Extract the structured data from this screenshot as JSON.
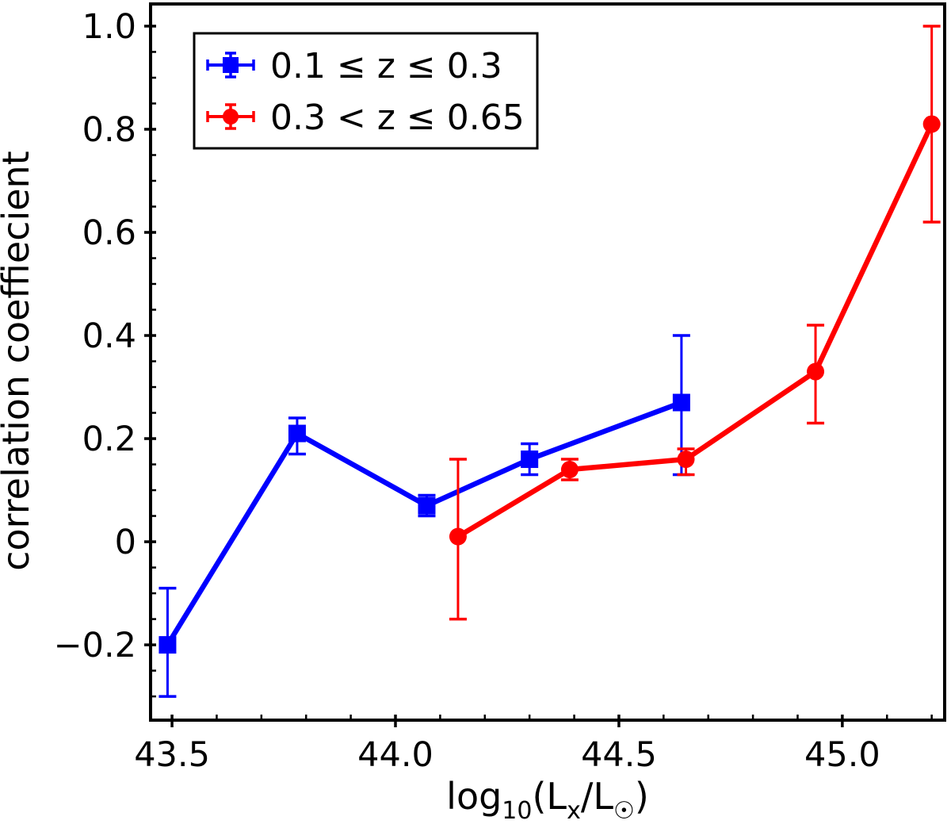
{
  "chart_data": {
    "type": "line",
    "title": "",
    "xlabel": "log₁₀(Lₓ/L☉)",
    "xlabel_parts": [
      {
        "text": "log",
        "sub": false
      },
      {
        "text": "10",
        "sub": true
      },
      {
        "text": "(L",
        "sub": false
      },
      {
        "text": "x",
        "sub": true
      },
      {
        "text": "/L",
        "sub": false
      },
      {
        "text": "☉",
        "sub": true
      },
      {
        "text": ")",
        "sub": false
      }
    ],
    "ylabel": "correlation coeffiecient",
    "xlim": [
      43.452,
      45.229
    ],
    "ylim": [
      -0.346,
      1.043
    ],
    "x_major_ticks": [
      43.5,
      44.0,
      44.5,
      45.0
    ],
    "x_tick_labels": [
      "43.5",
      "44.0",
      "44.5",
      "45.0"
    ],
    "x_minor_step": 0.1,
    "y_major_ticks": [
      -0.2,
      0,
      0.2,
      0.4,
      0.6,
      0.8,
      1.0
    ],
    "y_tick_labels": [
      "−0.2",
      "0",
      "0.2",
      "0.4",
      "0.6",
      "0.8",
      "1.0"
    ],
    "y_minor_step": 0.05,
    "grid": false,
    "axis_color": "#000000",
    "background": "#ffffff",
    "legend": {
      "position": "upper-left",
      "border_color": "#000000",
      "fill": "#ffffff"
    },
    "series": [
      {
        "name": "0.1 ≤  z ≤  0.3",
        "color": "#0000ff",
        "marker": "square",
        "x": [
          43.49,
          43.78,
          44.07,
          44.3,
          44.64
        ],
        "y": [
          -0.2,
          0.21,
          0.07,
          0.16,
          0.27
        ],
        "yerr_low": [
          -0.3,
          0.17,
          0.05,
          0.13,
          0.13
        ],
        "yerr_high": [
          -0.09,
          0.24,
          0.09,
          0.19,
          0.4
        ]
      },
      {
        "name": "0.3 < z ≤  0.65",
        "color": "#ff0000",
        "marker": "circle",
        "x": [
          44.14,
          44.39,
          44.65,
          44.94,
          45.2
        ],
        "y": [
          0.01,
          0.14,
          0.16,
          0.33,
          0.81
        ],
        "yerr_low": [
          -0.15,
          0.12,
          0.13,
          0.23,
          0.62
        ],
        "yerr_high": [
          0.16,
          0.16,
          0.18,
          0.42,
          1.0
        ]
      }
    ]
  }
}
